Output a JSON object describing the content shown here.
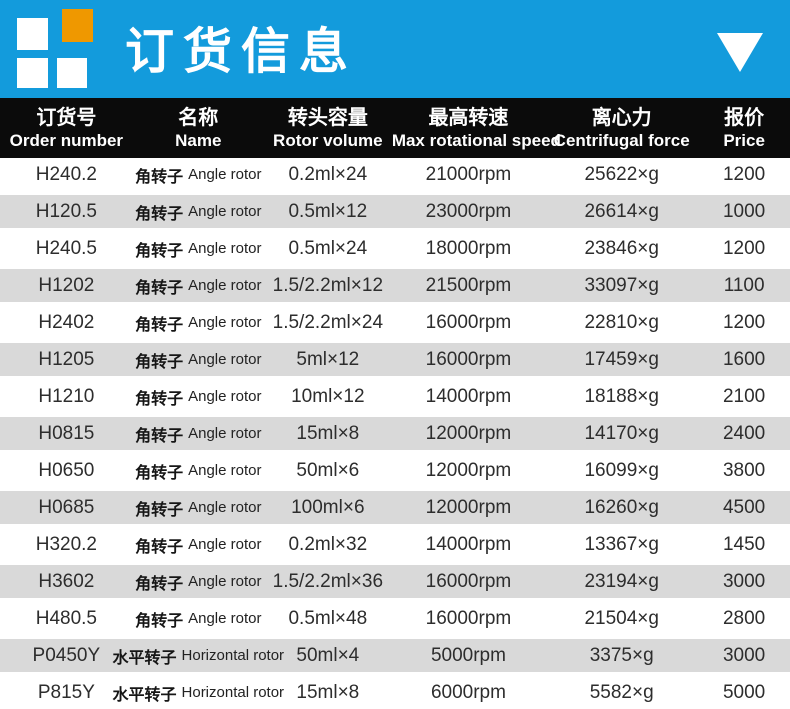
{
  "banner": {
    "title": "订货信息",
    "background_color": "#139BDC",
    "logo_square_colors": [
      "#FFFFFF",
      "#EF9800",
      "#FFFFFF",
      "#FFFFFF"
    ],
    "dropdown_icon": "triangle-down-white"
  },
  "table": {
    "header_bg": "#0B0B0B",
    "stripe_color": "#D9D9D9",
    "text_color": "#2D2D2D",
    "columns": [
      {
        "zh": "订货号",
        "en": "Order number"
      },
      {
        "zh": "名称",
        "en": "Name"
      },
      {
        "zh": "转头容量",
        "en": "Rotor volume"
      },
      {
        "zh": "最高转速",
        "en": "Max rotational speed"
      },
      {
        "zh": "离心力",
        "en": "Centrifugal force"
      },
      {
        "zh": "报价",
        "en": "Price"
      }
    ],
    "rows": [
      {
        "order": "H240.2",
        "name_zh": "角转子",
        "name_en": "Angle rotor",
        "volume": "0.2ml×24",
        "speed": "21000rpm",
        "force": "25622×g",
        "price": "1200"
      },
      {
        "order": "H120.5",
        "name_zh": "角转子",
        "name_en": "Angle rotor",
        "volume": "0.5ml×12",
        "speed": "23000rpm",
        "force": "26614×g",
        "price": "1000"
      },
      {
        "order": "H240.5",
        "name_zh": "角转子",
        "name_en": "Angle rotor",
        "volume": "0.5ml×24",
        "speed": "18000rpm",
        "force": "23846×g",
        "price": "1200"
      },
      {
        "order": "H1202",
        "name_zh": "角转子",
        "name_en": "Angle rotor",
        "volume": "1.5/2.2ml×12",
        "speed": "21500rpm",
        "force": "33097×g",
        "price": "1100"
      },
      {
        "order": "H2402",
        "name_zh": "角转子",
        "name_en": "Angle rotor",
        "volume": "1.5/2.2ml×24",
        "speed": "16000rpm",
        "force": "22810×g",
        "price": "1200"
      },
      {
        "order": "H1205",
        "name_zh": "角转子",
        "name_en": "Angle rotor",
        "volume": "5ml×12",
        "speed": "16000rpm",
        "force": "17459×g",
        "price": "1600"
      },
      {
        "order": "H1210",
        "name_zh": "角转子",
        "name_en": "Angle rotor",
        "volume": "10ml×12",
        "speed": "14000rpm",
        "force": "18188×g",
        "price": "2100"
      },
      {
        "order": "H0815",
        "name_zh": "角转子",
        "name_en": "Angle rotor",
        "volume": "15ml×8",
        "speed": "12000rpm",
        "force": "14170×g",
        "price": "2400"
      },
      {
        "order": "H0650",
        "name_zh": "角转子",
        "name_en": "Angle rotor",
        "volume": "50ml×6",
        "speed": "12000rpm",
        "force": "16099×g",
        "price": "3800"
      },
      {
        "order": "H0685",
        "name_zh": "角转子",
        "name_en": "Angle rotor",
        "volume": "100ml×6",
        "speed": "12000rpm",
        "force": "16260×g",
        "price": "4500"
      },
      {
        "order": "H320.2",
        "name_zh": "角转子",
        "name_en": "Angle rotor",
        "volume": "0.2ml×32",
        "speed": "14000rpm",
        "force": "13367×g",
        "price": "1450"
      },
      {
        "order": "H3602",
        "name_zh": "角转子",
        "name_en": "Angle rotor",
        "volume": "1.5/2.2ml×36",
        "speed": "16000rpm",
        "force": "23194×g",
        "price": "3000"
      },
      {
        "order": "H480.5",
        "name_zh": "角转子",
        "name_en": "Angle rotor",
        "volume": "0.5ml×48",
        "speed": "16000rpm",
        "force": "21504×g",
        "price": "2800"
      },
      {
        "order": "P0450Y",
        "name_zh": "水平转子",
        "name_en": "Horizontal rotor",
        "volume": "50ml×4",
        "speed": "5000rpm",
        "force": "3375×g",
        "price": "3000"
      },
      {
        "order": "P815Y",
        "name_zh": "水平转子",
        "name_en": "Horizontal rotor",
        "volume": "15ml×8",
        "speed": "6000rpm",
        "force": "5582×g",
        "price": "5000"
      }
    ]
  }
}
